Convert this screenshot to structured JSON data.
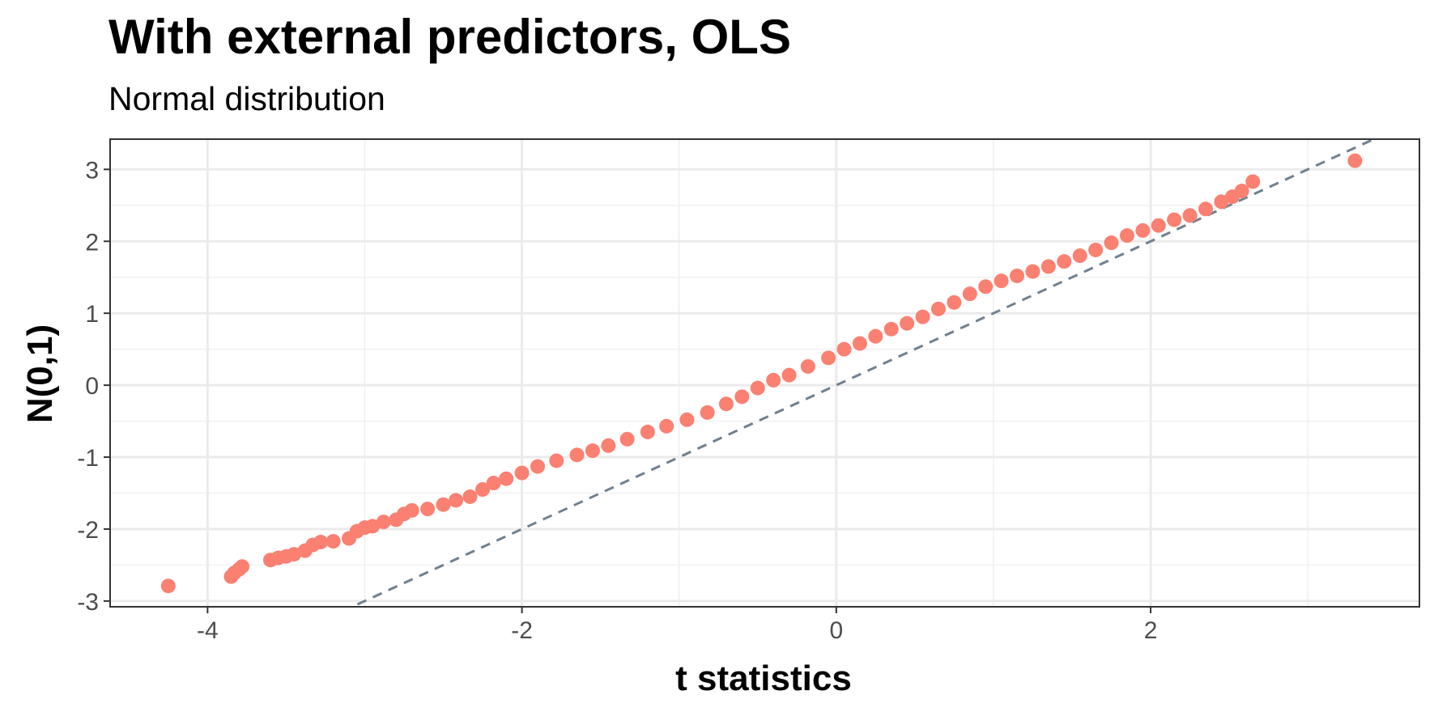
{
  "chart_data": {
    "type": "scatter",
    "title": "With external predictors, OLS",
    "subtitle": "Normal distribution",
    "xlabel": "t statistics",
    "ylabel": "N(0,1)",
    "xlim": [
      -4.62,
      3.71
    ],
    "ylim": [
      -3.08,
      3.42
    ],
    "x_ticks": [
      -4,
      -2,
      0,
      2
    ],
    "x_tick_labels": [
      "-4",
      "-2",
      "0",
      "2"
    ],
    "y_ticks": [
      -3,
      -2,
      -1,
      0,
      1,
      2,
      3
    ],
    "y_tick_labels": [
      "-3",
      "-2",
      "-1",
      "0",
      "1",
      "2",
      "3"
    ],
    "grid": true,
    "point_color": "#FA8072",
    "reference_line": {
      "slope": 1,
      "intercept": 0,
      "style": "dashed",
      "color": "#708090"
    },
    "points": [
      [
        -4.25,
        -2.79
      ],
      [
        -3.85,
        -2.66
      ],
      [
        -3.83,
        -2.61
      ],
      [
        -3.8,
        -2.56
      ],
      [
        -3.78,
        -2.52
      ],
      [
        -3.6,
        -2.43
      ],
      [
        -3.55,
        -2.4
      ],
      [
        -3.5,
        -2.38
      ],
      [
        -3.45,
        -2.35
      ],
      [
        -3.38,
        -2.3
      ],
      [
        -3.33,
        -2.22
      ],
      [
        -3.28,
        -2.18
      ],
      [
        -3.2,
        -2.17
      ],
      [
        -3.1,
        -2.13
      ],
      [
        -3.05,
        -2.03
      ],
      [
        -3.0,
        -1.98
      ],
      [
        -2.95,
        -1.96
      ],
      [
        -2.88,
        -1.9
      ],
      [
        -2.8,
        -1.87
      ],
      [
        -2.75,
        -1.79
      ],
      [
        -2.7,
        -1.74
      ],
      [
        -2.6,
        -1.72
      ],
      [
        -2.5,
        -1.66
      ],
      [
        -2.42,
        -1.6
      ],
      [
        -2.33,
        -1.55
      ],
      [
        -2.25,
        -1.45
      ],
      [
        -2.18,
        -1.36
      ],
      [
        -2.1,
        -1.3
      ],
      [
        -2.0,
        -1.22
      ],
      [
        -1.9,
        -1.13
      ],
      [
        -1.78,
        -1.05
      ],
      [
        -1.65,
        -0.97
      ],
      [
        -1.55,
        -0.91
      ],
      [
        -1.45,
        -0.84
      ],
      [
        -1.33,
        -0.75
      ],
      [
        -1.2,
        -0.65
      ],
      [
        -1.08,
        -0.57
      ],
      [
        -0.95,
        -0.48
      ],
      [
        -0.82,
        -0.38
      ],
      [
        -0.7,
        -0.26
      ],
      [
        -0.6,
        -0.16
      ],
      [
        -0.5,
        -0.04
      ],
      [
        -0.4,
        0.07
      ],
      [
        -0.3,
        0.14
      ],
      [
        -0.18,
        0.26
      ],
      [
        -0.05,
        0.38
      ],
      [
        0.05,
        0.5
      ],
      [
        0.15,
        0.58
      ],
      [
        0.25,
        0.68
      ],
      [
        0.35,
        0.78
      ],
      [
        0.45,
        0.86
      ],
      [
        0.55,
        0.95
      ],
      [
        0.65,
        1.06
      ],
      [
        0.75,
        1.15
      ],
      [
        0.85,
        1.27
      ],
      [
        0.95,
        1.37
      ],
      [
        1.05,
        1.45
      ],
      [
        1.15,
        1.52
      ],
      [
        1.25,
        1.58
      ],
      [
        1.35,
        1.65
      ],
      [
        1.45,
        1.72
      ],
      [
        1.55,
        1.8
      ],
      [
        1.65,
        1.88
      ],
      [
        1.75,
        1.98
      ],
      [
        1.85,
        2.08
      ],
      [
        1.95,
        2.15
      ],
      [
        2.05,
        2.22
      ],
      [
        2.15,
        2.3
      ],
      [
        2.25,
        2.36
      ],
      [
        2.35,
        2.45
      ],
      [
        2.45,
        2.55
      ],
      [
        2.52,
        2.62
      ],
      [
        2.58,
        2.7
      ],
      [
        2.65,
        2.83
      ],
      [
        3.3,
        3.12
      ]
    ]
  }
}
